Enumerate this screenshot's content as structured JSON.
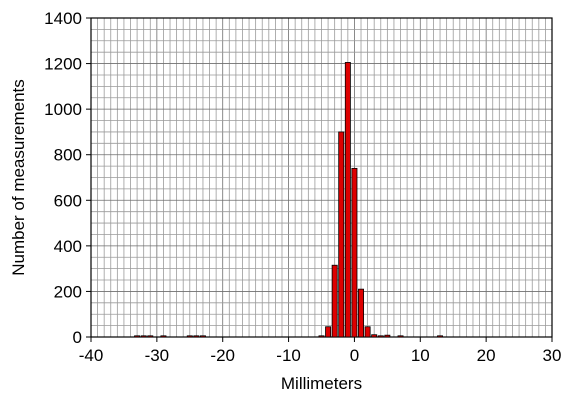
{
  "chart_data": {
    "type": "bar",
    "title": "",
    "xlabel": "Millimeters",
    "ylabel": "Number of measurements",
    "xlim": [
      -40,
      30
    ],
    "ylim": [
      0,
      1400
    ],
    "x_ticks": [
      -40,
      -30,
      -20,
      -10,
      0,
      10,
      20,
      30
    ],
    "y_ticks": [
      0,
      200,
      400,
      600,
      800,
      1000,
      1200,
      1400
    ],
    "grid": true,
    "bin_width": 1,
    "bar_color": "#dd0000",
    "bars": [
      {
        "x": -33,
        "y": 3
      },
      {
        "x": -32,
        "y": 4
      },
      {
        "x": -31,
        "y": 3
      },
      {
        "x": -29,
        "y": 3
      },
      {
        "x": -25,
        "y": 3
      },
      {
        "x": -24,
        "y": 3
      },
      {
        "x": -23,
        "y": 3
      },
      {
        "x": -5,
        "y": 5
      },
      {
        "x": -4,
        "y": 45
      },
      {
        "x": -3,
        "y": 315
      },
      {
        "x": -2,
        "y": 900
      },
      {
        "x": -1,
        "y": 1205
      },
      {
        "x": 0,
        "y": 740
      },
      {
        "x": 1,
        "y": 210
      },
      {
        "x": 2,
        "y": 45
      },
      {
        "x": 3,
        "y": 10
      },
      {
        "x": 4,
        "y": 5
      },
      {
        "x": 5,
        "y": 8
      },
      {
        "x": 7,
        "y": 3
      },
      {
        "x": 13,
        "y": 3
      }
    ]
  }
}
